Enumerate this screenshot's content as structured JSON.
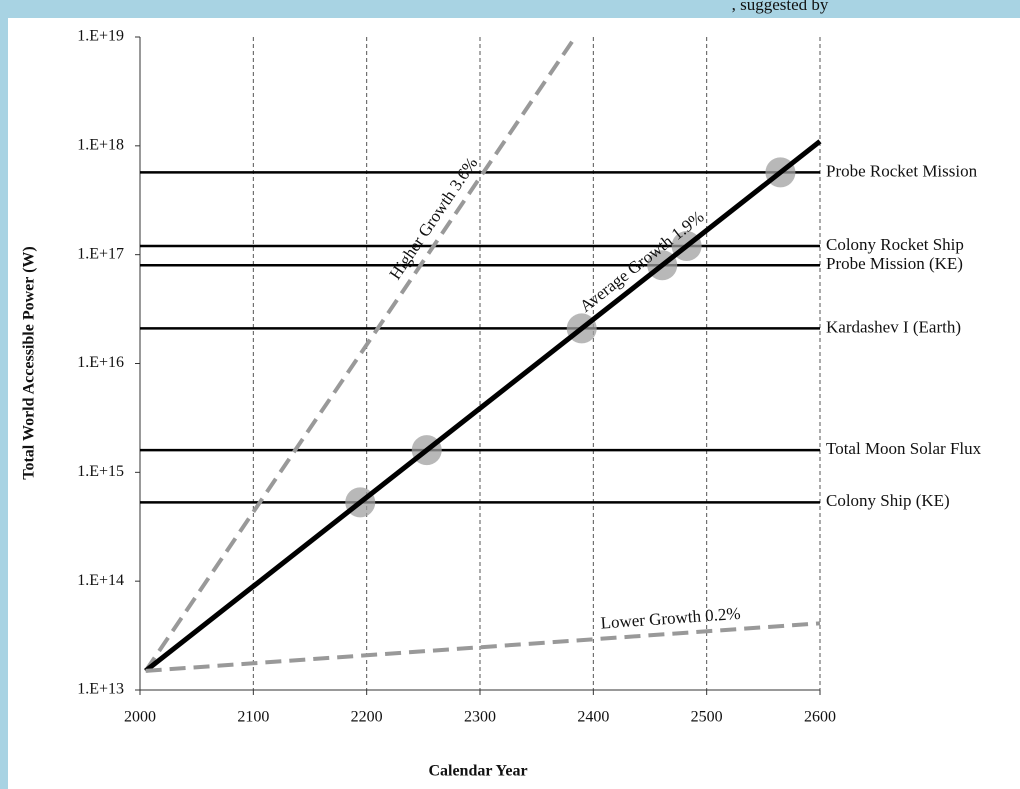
{
  "chart_data": {
    "type": "line",
    "title": ", suggested by",
    "x_label": "Calendar Year",
    "y_label": "Total World Accessible Power (W)",
    "log_y": true,
    "grid_x": true,
    "xlim": [
      2000,
      2600
    ],
    "xticks": [
      2000,
      2100,
      2200,
      2300,
      2400,
      2500,
      2600
    ],
    "ylim": [
      10000000000000.0,
      1e+19
    ],
    "yticks": [
      {
        "value": 10000000000000.0,
        "label": "1.E+13"
      },
      {
        "value": 100000000000000.0,
        "label": "1.E+14"
      },
      {
        "value": 1000000000000000.0,
        "label": "1.E+15"
      },
      {
        "value": 1e+16,
        "label": "1.E+16"
      },
      {
        "value": 1e+17,
        "label": "1.E+17"
      },
      {
        "value": 1e+18,
        "label": "1.E+18"
      },
      {
        "value": 1e+19,
        "label": "1.E+19"
      }
    ],
    "series": [
      {
        "name": "Higher Growth 3.6%",
        "color": "#999999",
        "dashed": true,
        "x": [
          2005,
          2384
        ],
        "values": [
          15000000000000.0,
          1e+19
        ]
      },
      {
        "name": "Average Growth 1.9%",
        "color": "#000000",
        "dashed": false,
        "x": [
          2005,
          2600
        ],
        "values": [
          15000000000000.0,
          1.1e+18
        ]
      },
      {
        "name": "Lower Growth 0.2%",
        "color": "#999999",
        "dashed": true,
        "x": [
          2005,
          2600
        ],
        "values": [
          15000000000000.0,
          41000000000000.0
        ]
      }
    ],
    "reference_lines": [
      {
        "name": "Probe Rocket Mission",
        "value": 5.7e+17
      },
      {
        "name": "Colony Rocket Ship",
        "value": 1.2e+17
      },
      {
        "name": "Probe Mission (KE)",
        "value": 8e+16
      },
      {
        "name": "Kardashev I (Earth)",
        "value": 2.1e+16
      },
      {
        "name": "Total Moon Solar Flux",
        "value": 1600000000000000.0
      },
      {
        "name": "Colony Ship (KE)",
        "value": 530000000000000.0
      }
    ],
    "milestone_color": "#a0a0a0"
  }
}
